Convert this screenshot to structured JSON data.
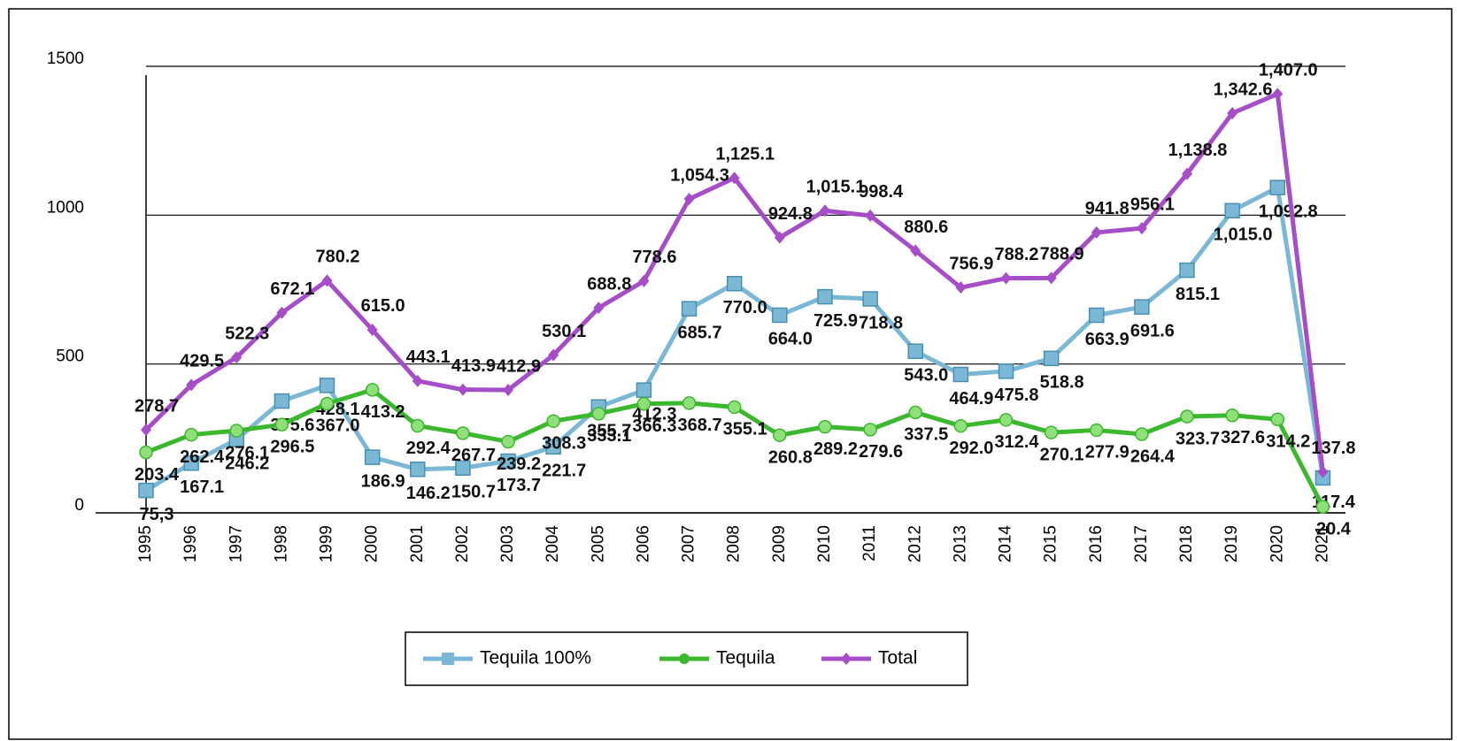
{
  "chart_data": {
    "type": "line",
    "categories": [
      "1995",
      "1996",
      "1997",
      "1998",
      "1999",
      "2000",
      "2001",
      "2002",
      "2003",
      "2004",
      "2005",
      "2006",
      "2007",
      "2008",
      "2009",
      "2010",
      "2011",
      "2012",
      "2013",
      "2014",
      "2015",
      "2016",
      "2017",
      "2018",
      "2019",
      "2020",
      "2021"
    ],
    "ylim": [
      0,
      1500
    ],
    "yticks": [
      0,
      500,
      1000,
      1500
    ],
    "grid": true,
    "legend": "bottom",
    "series": [
      {
        "name": "Tequila 100%",
        "color": "#7ab8d6",
        "values": [
          75.3,
          167.1,
          246.2,
          375.6,
          428.1,
          186.9,
          146.2,
          150.7,
          173.7,
          221.7,
          355.7,
          412.3,
          685.7,
          770.0,
          664.0,
          725.9,
          718.8,
          543.0,
          464.9,
          475.8,
          518.8,
          663.9,
          691.6,
          815.1,
          1015.0,
          1092.8,
          117.4
        ],
        "value_labels": [
          "75,3",
          "167.1",
          "246.2",
          "375.6",
          "428.1",
          "186.9",
          "146.2",
          "150.7",
          "173.7",
          "221.7",
          "355.7",
          "412.3",
          "685.7",
          "770.0",
          "664.0",
          "725.9",
          "718.8",
          "543.0",
          "464.9",
          "475.8",
          "518.8",
          "663.9",
          "691.6",
          "815.1",
          "1,015.0",
          "1,092.8",
          "117.4"
        ]
      },
      {
        "name": "Tequila",
        "color": "#3cb82e",
        "values": [
          203.4,
          262.4,
          276.1,
          296.5,
          367.0,
          413.2,
          292.4,
          267.7,
          239.2,
          308.3,
          333.1,
          366.3,
          368.7,
          355.1,
          260.8,
          289.2,
          279.6,
          337.5,
          292.0,
          312.4,
          270.1,
          277.9,
          264.4,
          323.7,
          327.6,
          314.2,
          20.4
        ],
        "value_labels": [
          "203.4",
          "262.4",
          "276.1",
          "296.5",
          "367.0",
          "413.2",
          "292.4",
          "267.7",
          "239.2",
          "308.3",
          "333.1",
          "366.3",
          "368.7",
          "355.1",
          "260.8",
          "289.2",
          "279.6",
          "337.5",
          "292.0",
          "312.4",
          "270.1",
          "277.9",
          "264.4",
          "323.7",
          "327.6",
          "314.2",
          "20.4"
        ]
      },
      {
        "name": "Total",
        "color": "#a64dc8",
        "values": [
          278.7,
          429.5,
          522.3,
          672.1,
          780.2,
          615.0,
          443.1,
          413.9,
          412.9,
          530.1,
          688.8,
          778.6,
          1054.3,
          1125.1,
          924.8,
          1015.1,
          998.4,
          880.6,
          756.9,
          788.2,
          788.9,
          941.8,
          956.1,
          1138.8,
          1342.6,
          1407.0,
          137.8
        ],
        "value_labels": [
          "278.7",
          "429.5",
          "522.3",
          "672.1",
          "780.2",
          "615.0",
          "443.1",
          "413.9",
          "412.9",
          "530.1",
          "688.8",
          "778.6",
          "1,054.3",
          "1,125.1",
          "924.8",
          "1,015.1",
          "998.4",
          "880.6",
          "756.9",
          "788.2",
          "788.9",
          "941.8",
          "956.1",
          "1,138.8",
          "1,342.6",
          "1,407.0",
          "137.8"
        ]
      }
    ]
  }
}
